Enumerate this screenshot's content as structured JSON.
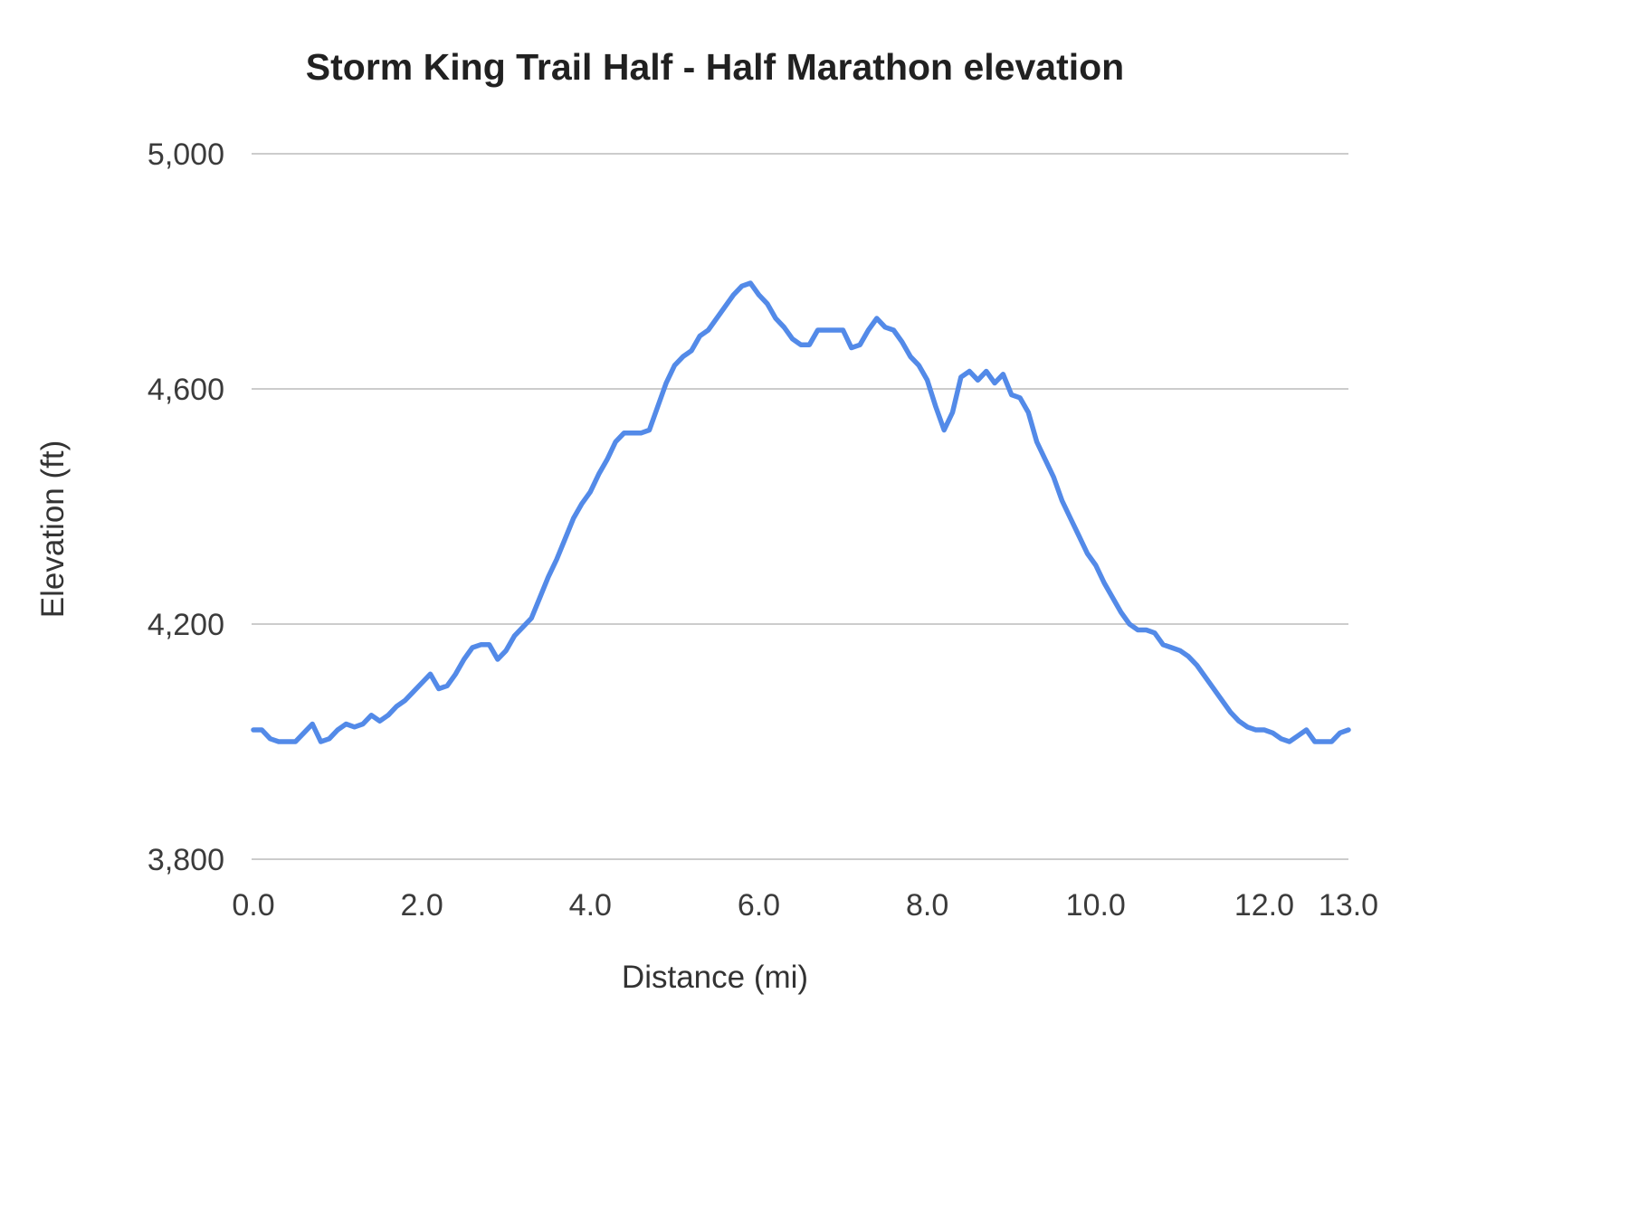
{
  "page": {
    "background_color": "#ffffff"
  },
  "chart_data": {
    "type": "line",
    "title": "Storm King Trail Half - Half Marathon elevation",
    "xlabel": "Distance (mi)",
    "ylabel": "Elevation (ft)",
    "xlim": [
      0,
      13
    ],
    "ylim": [
      3800,
      5000
    ],
    "grid": "horizontal-only",
    "legend": "none",
    "line_color": "#538ae8",
    "grid_color": "#cccccc",
    "x_ticks": [
      {
        "value": 0,
        "label": "0.0"
      },
      {
        "value": 2,
        "label": "2.0"
      },
      {
        "value": 4,
        "label": "4.0"
      },
      {
        "value": 6,
        "label": "6.0"
      },
      {
        "value": 8,
        "label": "8.0"
      },
      {
        "value": 10,
        "label": "10.0"
      },
      {
        "value": 12,
        "label": "12.0"
      },
      {
        "value": 13,
        "label": "13.0"
      }
    ],
    "y_ticks": [
      {
        "value": 3800,
        "label": "3,800"
      },
      {
        "value": 4200,
        "label": "4,200"
      },
      {
        "value": 4600,
        "label": "4,600"
      },
      {
        "value": 5000,
        "label": "5,000"
      }
    ],
    "series": [
      {
        "name": "Elevation",
        "units": "ft",
        "x_start_mi": 0.0,
        "x_interval_mi": 0.1,
        "values": [
          4020,
          4020,
          4005,
          4000,
          4000,
          4000,
          4015,
          4030,
          4000,
          4005,
          4020,
          4030,
          4025,
          4030,
          4045,
          4035,
          4045,
          4060,
          4070,
          4085,
          4100,
          4115,
          4090,
          4095,
          4115,
          4140,
          4160,
          4165,
          4165,
          4140,
          4155,
          4180,
          4195,
          4210,
          4245,
          4280,
          4310,
          4345,
          4380,
          4405,
          4425,
          4455,
          4480,
          4510,
          4525,
          4525,
          4525,
          4530,
          4570,
          4610,
          4640,
          4655,
          4665,
          4690,
          4700,
          4720,
          4740,
          4760,
          4775,
          4780,
          4760,
          4745,
          4720,
          4705,
          4685,
          4675,
          4675,
          4700,
          4700,
          4700,
          4700,
          4670,
          4675,
          4700,
          4720,
          4705,
          4700,
          4680,
          4655,
          4640,
          4615,
          4570,
          4530,
          4560,
          4620,
          4630,
          4615,
          4630,
          4610,
          4625,
          4590,
          4585,
          4560,
          4510,
          4480,
          4450,
          4410,
          4380,
          4350,
          4320,
          4300,
          4270,
          4245,
          4220,
          4200,
          4190,
          4190,
          4185,
          4165,
          4160,
          4155,
          4145,
          4130,
          4110,
          4090,
          4070,
          4050,
          4035,
          4025,
          4020,
          4020,
          4015,
          4005,
          4000,
          4010,
          4020,
          4000,
          4000,
          4000,
          4015,
          4020
        ]
      }
    ]
  }
}
